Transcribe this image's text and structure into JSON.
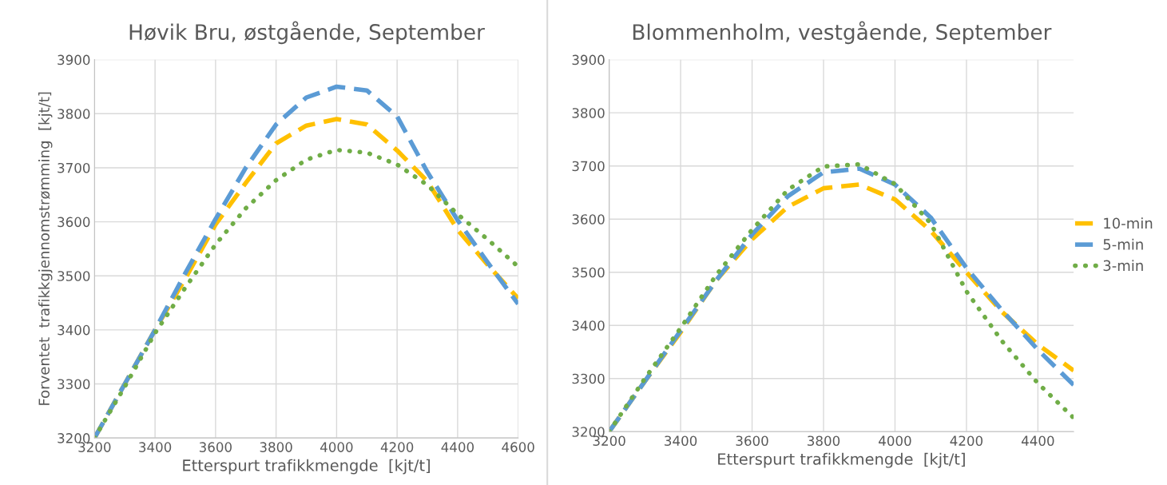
{
  "chart_data": [
    {
      "type": "line",
      "title": "Høvik Bru, østgående, September",
      "xlabel": "Etterspurt trafikkmengde  [kjt/t]",
      "ylabel": "Forventet  trafikkgjennomstrømming  [kjt/t]",
      "x": [
        3200,
        3300,
        3400,
        3500,
        3600,
        3700,
        3800,
        3900,
        4000,
        4100,
        4200,
        4300,
        4400,
        4500,
        4600
      ],
      "series": [
        {
          "color": "#ffc000",
          "line_style": "dashed",
          "values": [
            3200,
            3300,
            3400,
            3495,
            3595,
            3672,
            3745,
            3778,
            3790,
            3780,
            3732,
            3675,
            3585,
            3520,
            3458
          ]
        },
        {
          "color": "#5b9bd5",
          "line_style": "dashed",
          "values": [
            3200,
            3300,
            3400,
            3505,
            3605,
            3700,
            3780,
            3830,
            3850,
            3843,
            3795,
            3692,
            3603,
            3524,
            3448
          ]
        },
        {
          "color": "#70ad47",
          "line_style": "dotted",
          "values": [
            3200,
            3295,
            3394,
            3478,
            3558,
            3625,
            3677,
            3715,
            3733,
            3728,
            3706,
            3668,
            3614,
            3567,
            3517
          ]
        }
      ],
      "xlim": [
        3200,
        4600
      ],
      "ylim": [
        3200,
        3900
      ],
      "xticks": [
        3200,
        3400,
        3600,
        3800,
        4000,
        4200,
        4400,
        4600
      ],
      "yticks": [
        3200,
        3300,
        3400,
        3500,
        3600,
        3700,
        3800,
        3900
      ],
      "grid": true,
      "legend": false
    },
    {
      "type": "line",
      "title": "Blommenholm, vestgående, September",
      "xlabel": "Etterspurt trafikkmengde  [kjt/t]",
      "x": [
        3200,
        3300,
        3400,
        3500,
        3600,
        3700,
        3800,
        3900,
        4000,
        4100,
        4200,
        4300,
        4400,
        4500
      ],
      "series": [
        {
          "name": "10-min",
          "color": "#ffc000",
          "line_style": "dashed",
          "values": [
            3200,
            3295,
            3387,
            3485,
            3562,
            3623,
            3658,
            3665,
            3637,
            3578,
            3500,
            3425,
            3364,
            3315
          ]
        },
        {
          "name": "5-min",
          "color": "#5b9bd5",
          "line_style": "dashed",
          "values": [
            3200,
            3295,
            3390,
            3485,
            3571,
            3643,
            3688,
            3695,
            3665,
            3603,
            3508,
            3428,
            3354,
            3288
          ]
        },
        {
          "name": "3-min",
          "color": "#70ad47",
          "line_style": "dotted",
          "values": [
            3200,
            3300,
            3395,
            3495,
            3580,
            3655,
            3699,
            3703,
            3666,
            3592,
            3464,
            3370,
            3291,
            3226
          ]
        }
      ],
      "xlim": [
        3200,
        4500
      ],
      "ylim": [
        3200,
        3900
      ],
      "xticks": [
        3200,
        3400,
        3600,
        3800,
        4000,
        4200,
        4400
      ],
      "yticks": [
        3200,
        3300,
        3400,
        3500,
        3600,
        3700,
        3800,
        3900
      ],
      "grid": true,
      "legend": "right"
    }
  ]
}
